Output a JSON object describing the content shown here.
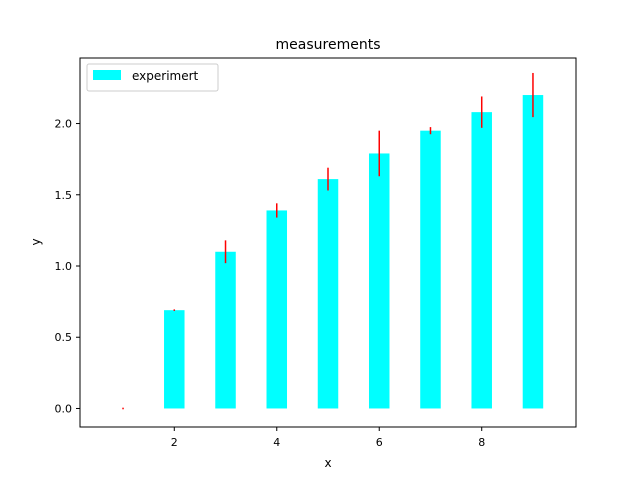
{
  "chart_data": {
    "type": "bar",
    "title": "measurements",
    "xlabel": "x",
    "ylabel": "y",
    "xlim": [
      0.16,
      9.84
    ],
    "ylim": [
      -0.13,
      2.46
    ],
    "xticks": [
      2,
      4,
      6,
      8
    ],
    "yticks": [
      0.0,
      0.5,
      1.0,
      1.5,
      2.0
    ],
    "xtick_labels": [
      "2",
      "4",
      "6",
      "8"
    ],
    "ytick_labels": [
      "0.0",
      "0.5",
      "1.0",
      "1.5",
      "2.0"
    ],
    "bar_width": 0.4,
    "grid": false,
    "legend_position": "top-left",
    "series": [
      {
        "name": "experimert",
        "color": "#00ffff",
        "errorbar_color": "#ff0000",
        "x": [
          1,
          2,
          3,
          4,
          5,
          6,
          7,
          8,
          9
        ],
        "values": [
          0.0,
          0.69,
          1.1,
          1.39,
          1.61,
          1.79,
          1.95,
          2.08,
          2.2
        ],
        "errors": [
          0.0,
          0.0,
          0.08,
          0.05,
          0.08,
          0.16,
          0.025,
          0.11,
          0.155
        ]
      }
    ]
  }
}
